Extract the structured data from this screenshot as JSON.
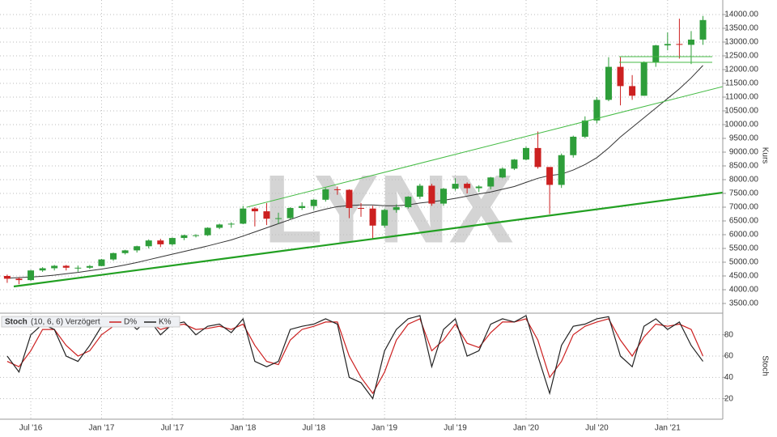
{
  "chart_data": [
    {
      "type": "candlestick",
      "watermark": "LYNX",
      "ylabel": "Kurs",
      "categories": [
        null,
        null,
        "Jul '16",
        null,
        null,
        null,
        null,
        null,
        "Jan '17",
        null,
        null,
        null,
        null,
        null,
        "Jul '17",
        null,
        null,
        null,
        null,
        null,
        "Jan '18",
        null,
        null,
        null,
        null,
        null,
        "Jul '18",
        null,
        null,
        null,
        null,
        null,
        "Jan '19",
        null,
        null,
        null,
        null,
        null,
        "Jul '19",
        null,
        null,
        null,
        null,
        null,
        "Jan '20",
        null,
        null,
        null,
        null,
        null,
        "Jul '20",
        null,
        null,
        null,
        null,
        null,
        "Jan '21",
        null,
        null,
        null
      ],
      "open": [
        4500,
        4400,
        4350,
        4700,
        4780,
        4870,
        4800,
        4800,
        4860,
        5100,
        5330,
        5430,
        5580,
        5790,
        5650,
        5880,
        5980,
        5980,
        6250,
        6370,
        6400,
        6950,
        6850,
        6580,
        6600,
        6970,
        7040,
        7270,
        7650,
        7630,
        6970,
        6950,
        6330,
        6900,
        7000,
        7380,
        7780,
        7130,
        7670,
        7850,
        7690,
        7750,
        8080,
        8400,
        8730,
        9150,
        8460,
        7810,
        8890,
        9560,
        10150,
        10900,
        12100,
        11400,
        11050,
        12270,
        12880,
        12930,
        12900,
        13090
      ],
      "high": [
        4550,
        4450,
        4720,
        4820,
        4900,
        4900,
        4880,
        4900,
        5120,
        5350,
        5450,
        5600,
        5830,
        5850,
        5900,
        6000,
        6020,
        6270,
        6400,
        6450,
        7050,
        7000,
        7150,
        6800,
        7000,
        7180,
        7300,
        7700,
        7750,
        7650,
        7150,
        7050,
        6950,
        7100,
        7400,
        7850,
        7850,
        7700,
        8050,
        7900,
        7800,
        8100,
        8450,
        8750,
        9200,
        9750,
        8450,
        8950,
        9600,
        10300,
        11000,
        12450,
        12450,
        11800,
        12300,
        12900,
        13350,
        13850,
        13400,
        13950
      ],
      "low": [
        4250,
        4200,
        4320,
        4650,
        4700,
        4700,
        4650,
        4750,
        4850,
        5050,
        5280,
        5350,
        5500,
        5550,
        5600,
        5800,
        5900,
        5950,
        6200,
        6250,
        6380,
        6300,
        6350,
        6400,
        6550,
        6900,
        6900,
        7200,
        7450,
        6600,
        6650,
        5850,
        6250,
        6800,
        6950,
        7300,
        7050,
        7050,
        7600,
        7500,
        7550,
        7650,
        8050,
        8350,
        8700,
        8400,
        6750,
        7700,
        8800,
        9500,
        10050,
        10850,
        10700,
        10900,
        11050,
        12100,
        12700,
        12400,
        12200,
        12900
      ],
      "close": [
        4400,
        4350,
        4700,
        4780,
        4870,
        4800,
        4800,
        4860,
        5100,
        5330,
        5430,
        5580,
        5790,
        5650,
        5880,
        5980,
        5980,
        6250,
        6370,
        6400,
        6950,
        6850,
        6580,
        6600,
        6970,
        7040,
        7270,
        7650,
        7630,
        6970,
        6950,
        6330,
        6900,
        7000,
        7380,
        7780,
        7130,
        7670,
        7850,
        7690,
        7750,
        8080,
        8400,
        8730,
        9150,
        8460,
        7810,
        8890,
        9560,
        10150,
        10900,
        12100,
        11400,
        11050,
        12270,
        12880,
        12930,
        12900,
        13090,
        13800
      ],
      "up_color": "#2e9e3a",
      "down_color": "#cc2020",
      "ma": {
        "color": "#333333",
        "values": [
          4420,
          4440,
          4460,
          4490,
          4530,
          4580,
          4630,
          4690,
          4750,
          4820,
          4900,
          4990,
          5090,
          5190,
          5290,
          5390,
          5490,
          5590,
          5700,
          5810,
          5950,
          6100,
          6250,
          6400,
          6550,
          6700,
          6820,
          6930,
          7020,
          7060,
          7080,
          7080,
          7050,
          7050,
          7080,
          7150,
          7200,
          7250,
          7320,
          7400,
          7480,
          7550,
          7650,
          7750,
          7900,
          8050,
          8150,
          8200,
          8350,
          8550,
          8800,
          9150,
          9550,
          9900,
          10250,
          10600,
          10950,
          11300,
          11700,
          12150
        ]
      },
      "ylim": [
        3206,
        14382
      ],
      "yticks": [
        {
          "value": 3500,
          "label": "3500.00"
        },
        {
          "value": 4000,
          "label": "4000.00"
        },
        {
          "value": 4500,
          "label": "4500.00"
        },
        {
          "value": 5000,
          "label": "5000.00"
        },
        {
          "value": 5500,
          "label": "5500.00"
        },
        {
          "value": 6000,
          "label": "6000.00"
        },
        {
          "value": 6500,
          "label": "6500.00"
        },
        {
          "value": 7000,
          "label": "7000.00"
        },
        {
          "value": 7500,
          "label": "7500.00"
        },
        {
          "value": 8000,
          "label": "8000.00"
        },
        {
          "value": 8500,
          "label": "8500.00"
        },
        {
          "value": 9000,
          "label": "9000.00"
        },
        {
          "value": 9500,
          "label": "9500.00"
        },
        {
          "value": 10000,
          "label": "10000.00"
        },
        {
          "value": 10500,
          "label": "10500.00"
        },
        {
          "value": 11000,
          "label": "11000.00"
        },
        {
          "value": 11500,
          "label": "11500.00"
        },
        {
          "value": 12000,
          "label": "12000.00"
        },
        {
          "value": 12500,
          "label": "12500.00"
        },
        {
          "value": 13000,
          "label": "13000.00"
        },
        {
          "value": 13500,
          "label": "13500.00"
        },
        {
          "value": 14000,
          "label": "14000.00"
        }
      ],
      "grid": true
    },
    {
      "type": "line",
      "title": "Stoch",
      "subtitle": "(10, 6, 6) Verzögert",
      "ylabel": "Stoch",
      "ylim": [
        3,
        98
      ],
      "yticks": [
        20,
        40,
        60,
        80
      ],
      "series": [
        {
          "name": "D%",
          "color": "#cc2020",
          "values": [
            55,
            50,
            65,
            85,
            85,
            70,
            60,
            65,
            80,
            88,
            92,
            88,
            92,
            85,
            88,
            90,
            85,
            86,
            88,
            85,
            90,
            70,
            55,
            52,
            75,
            85,
            88,
            92,
            92,
            60,
            40,
            25,
            45,
            75,
            90,
            95,
            65,
            75,
            90,
            72,
            68,
            82,
            92,
            92,
            95,
            75,
            40,
            55,
            80,
            88,
            92,
            95,
            75,
            60,
            78,
            90,
            88,
            90,
            85,
            60
          ]
        },
        {
          "name": "K%",
          "color": "#222222",
          "values": [
            60,
            45,
            80,
            90,
            85,
            60,
            55,
            70,
            88,
            92,
            95,
            85,
            95,
            80,
            90,
            92,
            80,
            88,
            90,
            82,
            95,
            55,
            50,
            55,
            85,
            88,
            90,
            95,
            90,
            40,
            35,
            20,
            65,
            85,
            95,
            98,
            50,
            85,
            95,
            60,
            65,
            90,
            95,
            92,
            98,
            60,
            25,
            70,
            88,
            90,
            95,
            97,
            60,
            50,
            88,
            95,
            85,
            92,
            70,
            55
          ]
        }
      ]
    }
  ]
}
